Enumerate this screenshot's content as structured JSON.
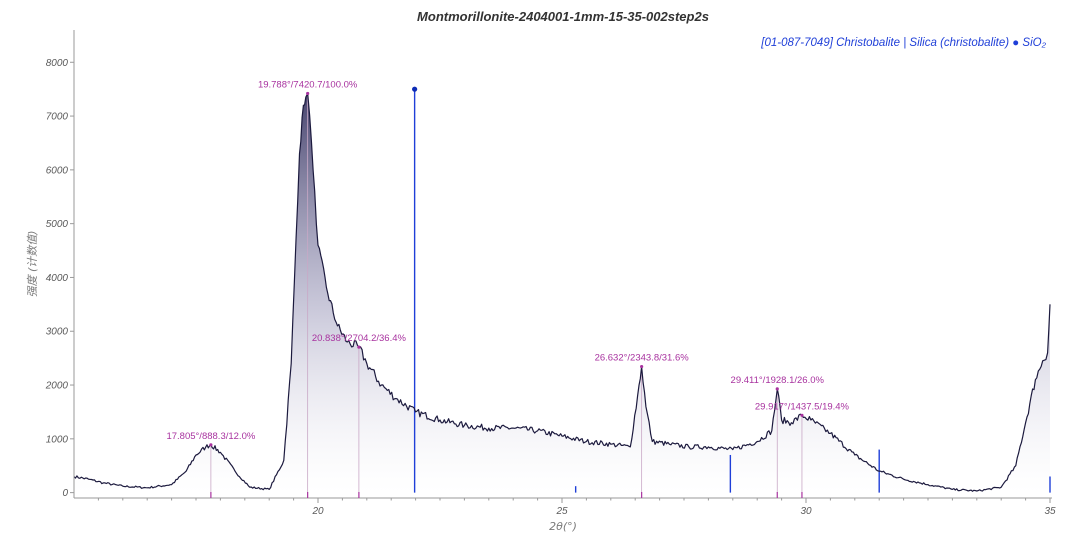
{
  "colors": {
    "trace": "#1c1a3e",
    "fill_top": "#3d3a66",
    "fill_bottom": "#ffffff",
    "reference": "#1f3fd8",
    "peak_marker": "#a8329f",
    "axis": "#9a9a9a"
  },
  "chart_data": {
    "type": "line",
    "title": "Montmorillonite-2404001-1mm-15-35-002step2s",
    "xlabel": "2θ(°)",
    "ylabel": "强度 (计数值)",
    "xlim": [
      15.0,
      35.0
    ],
    "ylim": [
      -100,
      8600
    ],
    "x_ticks": [
      20,
      25,
      30,
      35
    ],
    "y_ticks": [
      0,
      1000,
      2000,
      3000,
      4000,
      5000,
      6000,
      7000,
      8000
    ],
    "legend": {
      "text": "[01-087-7049] Christobalite | Silica (christobalite) ● SiO₂",
      "position": "top-right"
    },
    "series": [
      {
        "x": [
          15.0,
          15.3,
          15.6,
          16.0,
          16.5,
          17.0,
          17.3,
          17.5,
          17.7,
          17.805,
          18.0,
          18.3,
          18.6,
          19.0,
          19.3,
          19.45,
          19.55,
          19.62,
          19.7,
          19.75,
          19.788,
          19.83,
          19.9,
          20.0,
          20.2,
          20.4,
          20.6,
          20.838,
          21.0,
          21.3,
          21.6,
          22.0,
          22.5,
          23.0,
          23.5,
          24.0,
          24.5,
          25.0,
          25.5,
          26.0,
          26.4,
          26.55,
          26.632,
          26.72,
          26.85,
          27.2,
          27.6,
          28.0,
          28.5,
          29.0,
          29.3,
          29.411,
          29.5,
          29.7,
          29.917,
          30.1,
          30.5,
          31.0,
          31.5,
          32.0,
          32.5,
          33.0,
          33.5,
          34.0,
          34.3,
          34.5,
          34.7,
          34.85,
          34.95,
          35.0
        ],
        "y": [
          300,
          250,
          180,
          120,
          90,
          150,
          400,
          700,
          850,
          888,
          750,
          400,
          100,
          60,
          600,
          2400,
          4700,
          6300,
          7200,
          7350,
          7420,
          7000,
          6000,
          4600,
          3700,
          3100,
          2800,
          2704,
          2400,
          2000,
          1750,
          1500,
          1350,
          1250,
          1200,
          1200,
          1150,
          1050,
          950,
          900,
          850,
          1800,
          2343,
          1600,
          950,
          900,
          850,
          850,
          800,
          950,
          1150,
          1928,
          1350,
          1300,
          1437,
          1350,
          1100,
          700,
          400,
          250,
          150,
          60,
          30,
          100,
          500,
          1300,
          2100,
          2450,
          2600,
          3500
        ]
      }
    ],
    "peak_labels": [
      {
        "x": 17.805,
        "y": 888.3,
        "text": "17.805°/888.3/12.0%"
      },
      {
        "x": 19.788,
        "y": 7420.7,
        "text": "19.788°/7420.7/100.0%"
      },
      {
        "x": 20.838,
        "y": 2704.2,
        "text": "20.838°/2704.2/36.4%"
      },
      {
        "x": 26.632,
        "y": 2343.8,
        "text": "26.632°/2343.8/31.6%"
      },
      {
        "x": 29.411,
        "y": 1928.1,
        "text": "29.411°/1928.1/26.0%"
      },
      {
        "x": 29.917,
        "y": 1437.5,
        "text": "29.917°/1437.5/19.4%"
      }
    ],
    "reference_lines": [
      {
        "x": 21.98,
        "y": 7500,
        "marker": true
      },
      {
        "x": 25.28,
        "y": 120,
        "marker": false
      },
      {
        "x": 28.45,
        "y": 700,
        "marker": false
      },
      {
        "x": 31.5,
        "y": 800,
        "marker": false
      },
      {
        "x": 35.0,
        "y": 300,
        "marker": false
      }
    ]
  }
}
